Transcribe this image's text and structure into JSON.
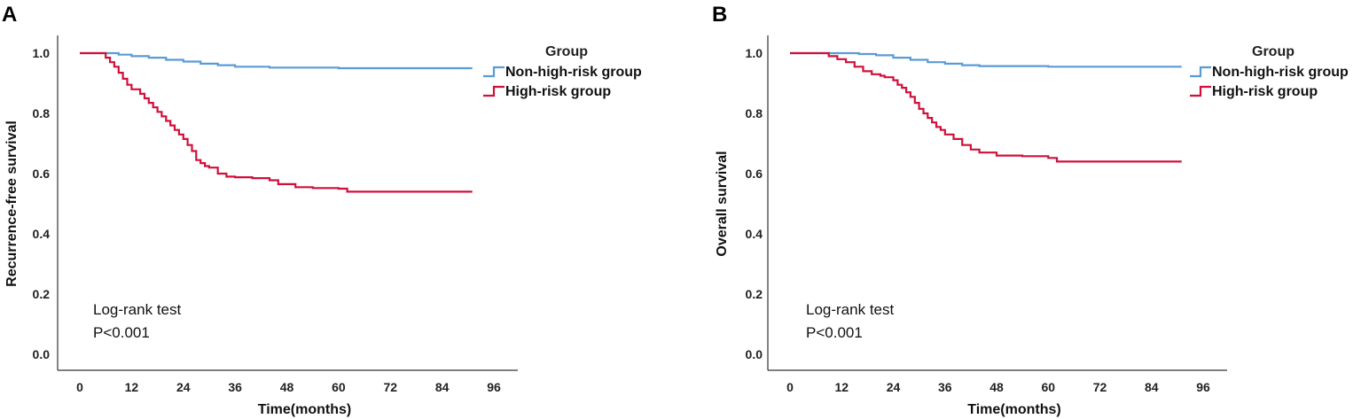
{
  "colors": {
    "non_high_risk": "#5b9bd5",
    "high_risk": "#d0103a",
    "axis": "#333333"
  },
  "chart_data": [
    {
      "panel_letter": "A",
      "type": "line",
      "title": "",
      "xlabel": "Time(months)",
      "ylabel": "Recurrence-free survival",
      "xlim": [
        0,
        96
      ],
      "ylim": [
        0,
        1
      ],
      "xticks": [
        "0",
        "12",
        "24",
        "36",
        "48",
        "60",
        "72",
        "84",
        "96"
      ],
      "yticks": [
        "0.0",
        "0.2",
        "0.4",
        "0.6",
        "0.8",
        "1.0"
      ],
      "legend": {
        "title": "Group",
        "position": "top-right"
      },
      "annotation": {
        "line1": "Log-rank test",
        "line2": "P<0.001"
      },
      "series": [
        {
          "name": "Non-high-risk group",
          "color": "#5b9bd5",
          "x": [
            0,
            6,
            9,
            12,
            16,
            20,
            24,
            28,
            32,
            36,
            44,
            60,
            91
          ],
          "y": [
            1.0,
            1.0,
            0.995,
            0.99,
            0.985,
            0.978,
            0.972,
            0.965,
            0.96,
            0.955,
            0.952,
            0.95,
            0.95
          ]
        },
        {
          "name": "High-risk group",
          "color": "#d0103a",
          "x": [
            0,
            5,
            6,
            7,
            8,
            9,
            10,
            11,
            12,
            14,
            15,
            16,
            17,
            18,
            19,
            20,
            21,
            22,
            23,
            24,
            25,
            26,
            27,
            28,
            29,
            30,
            32,
            34,
            36,
            40,
            44,
            46,
            50,
            54,
            60,
            62,
            91
          ],
          "y": [
            1.0,
            1.0,
            0.985,
            0.97,
            0.955,
            0.935,
            0.915,
            0.895,
            0.88,
            0.865,
            0.85,
            0.835,
            0.82,
            0.805,
            0.79,
            0.775,
            0.76,
            0.745,
            0.73,
            0.715,
            0.695,
            0.675,
            0.645,
            0.635,
            0.625,
            0.62,
            0.6,
            0.59,
            0.588,
            0.585,
            0.578,
            0.565,
            0.555,
            0.552,
            0.55,
            0.54,
            0.54
          ]
        }
      ]
    },
    {
      "panel_letter": "B",
      "type": "line",
      "title": "",
      "xlabel": "Time(months)",
      "ylabel": "Overall survival",
      "xlim": [
        0,
        96
      ],
      "ylim": [
        0,
        1
      ],
      "xticks": [
        "0",
        "12",
        "24",
        "36",
        "48",
        "60",
        "72",
        "84",
        "96"
      ],
      "yticks": [
        "0.0",
        "0.2",
        "0.4",
        "0.6",
        "0.8",
        "1.0"
      ],
      "legend": {
        "title": "Group",
        "position": "top-right"
      },
      "annotation": {
        "line1": "Log-rank test",
        "line2": "P<0.001"
      },
      "series": [
        {
          "name": "Non-high-risk group",
          "color": "#5b9bd5",
          "x": [
            0,
            12,
            16,
            20,
            24,
            28,
            32,
            36,
            40,
            44,
            60,
            91
          ],
          "y": [
            1.0,
            1.0,
            0.997,
            0.993,
            0.985,
            0.978,
            0.97,
            0.965,
            0.96,
            0.957,
            0.955,
            0.955
          ]
        },
        {
          "name": "High-risk group",
          "color": "#d0103a",
          "x": [
            0,
            7,
            9,
            11,
            13,
            15,
            17,
            19,
            21,
            22,
            24,
            25,
            26,
            27,
            28,
            29,
            30,
            31,
            32,
            33,
            34,
            35,
            36,
            38,
            40,
            42,
            44,
            48,
            54,
            60,
            62,
            91
          ],
          "y": [
            1.0,
            1.0,
            0.99,
            0.98,
            0.97,
            0.955,
            0.94,
            0.93,
            0.925,
            0.92,
            0.91,
            0.895,
            0.885,
            0.87,
            0.855,
            0.835,
            0.815,
            0.8,
            0.785,
            0.77,
            0.755,
            0.745,
            0.73,
            0.715,
            0.695,
            0.68,
            0.67,
            0.66,
            0.658,
            0.652,
            0.64,
            0.64
          ]
        }
      ]
    }
  ]
}
